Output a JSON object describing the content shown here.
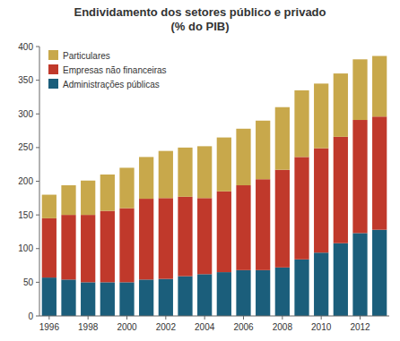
{
  "chart_data": {
    "type": "bar",
    "title": "Endividamento dos setores público e privado\n(% do PIB)",
    "categories": [
      "1996",
      null,
      "1998",
      null,
      "2000",
      null,
      "2002",
      null,
      "2004",
      null,
      "2006",
      null,
      "2008",
      null,
      "2010",
      null,
      "2012",
      null
    ],
    "series": [
      {
        "name": "Administrações públicas",
        "color": "#1b5e7b",
        "values": [
          57,
          54,
          50,
          50,
          50,
          54,
          55,
          59,
          62,
          65,
          68,
          68,
          72,
          84,
          94,
          108,
          123,
          128
        ]
      },
      {
        "name": "Empresas não financeiras",
        "color": "#c0392b",
        "values": [
          88,
          96,
          100,
          106,
          110,
          120,
          120,
          118,
          113,
          120,
          126,
          135,
          145,
          152,
          155,
          158,
          168,
          168
        ]
      },
      {
        "name": "Particulares",
        "color": "#c8a84b",
        "values": [
          35,
          44,
          51,
          54,
          60,
          62,
          70,
          73,
          77,
          80,
          84,
          87,
          93,
          99,
          96,
          94,
          90,
          90
        ]
      }
    ],
    "stacked": true,
    "ylim": [
      0,
      400
    ],
    "yticks": [
      0,
      50,
      100,
      150,
      200,
      250,
      300,
      350,
      400
    ],
    "grid": false,
    "legend": "upper left"
  }
}
